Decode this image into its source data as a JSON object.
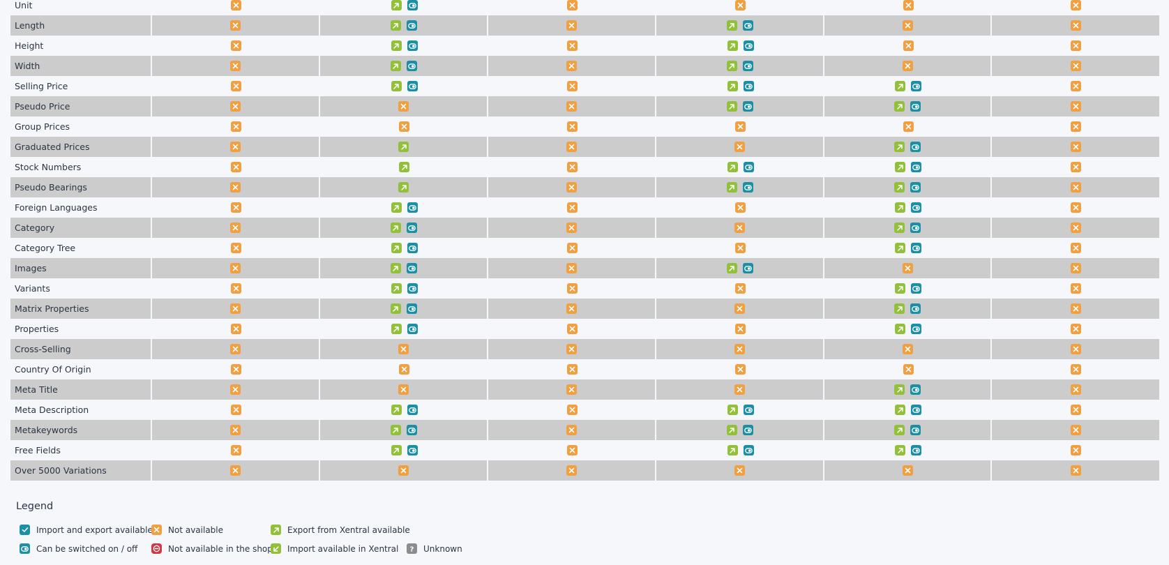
{
  "columns_count": 6,
  "rows": [
    {
      "label": "Unit",
      "cells": [
        [
          "na"
        ],
        [
          "export",
          "toggle"
        ],
        [
          "na"
        ],
        [
          "na"
        ],
        [
          "na"
        ],
        [
          "na"
        ]
      ]
    },
    {
      "label": "Length",
      "cells": [
        [
          "na"
        ],
        [
          "export",
          "toggle"
        ],
        [
          "na"
        ],
        [
          "export",
          "toggle"
        ],
        [
          "na"
        ],
        [
          "na"
        ]
      ]
    },
    {
      "label": "Height",
      "cells": [
        [
          "na"
        ],
        [
          "export",
          "toggle"
        ],
        [
          "na"
        ],
        [
          "export",
          "toggle"
        ],
        [
          "na"
        ],
        [
          "na"
        ]
      ]
    },
    {
      "label": "Width",
      "cells": [
        [
          "na"
        ],
        [
          "export",
          "toggle"
        ],
        [
          "na"
        ],
        [
          "export",
          "toggle"
        ],
        [
          "na"
        ],
        [
          "na"
        ]
      ]
    },
    {
      "label": "Selling Price",
      "cells": [
        [
          "na"
        ],
        [
          "export",
          "toggle"
        ],
        [
          "na"
        ],
        [
          "export",
          "toggle"
        ],
        [
          "export",
          "toggle"
        ],
        [
          "na"
        ]
      ]
    },
    {
      "label": "Pseudo Price",
      "cells": [
        [
          "na"
        ],
        [
          "na"
        ],
        [
          "na"
        ],
        [
          "export",
          "toggle"
        ],
        [
          "export",
          "toggle"
        ],
        [
          "na"
        ]
      ]
    },
    {
      "label": "Group Prices",
      "cells": [
        [
          "na"
        ],
        [
          "na"
        ],
        [
          "na"
        ],
        [
          "na"
        ],
        [
          "na"
        ],
        [
          "na"
        ]
      ]
    },
    {
      "label": "Graduated Prices",
      "cells": [
        [
          "na"
        ],
        [
          "export"
        ],
        [
          "na"
        ],
        [
          "na"
        ],
        [
          "export",
          "toggle"
        ],
        [
          "na"
        ]
      ]
    },
    {
      "label": "Stock Numbers",
      "cells": [
        [
          "na"
        ],
        [
          "export"
        ],
        [
          "na"
        ],
        [
          "export",
          "toggle"
        ],
        [
          "export",
          "toggle"
        ],
        [
          "na"
        ]
      ]
    },
    {
      "label": "Pseudo Bearings",
      "cells": [
        [
          "na"
        ],
        [
          "export"
        ],
        [
          "na"
        ],
        [
          "export",
          "toggle"
        ],
        [
          "export",
          "toggle"
        ],
        [
          "na"
        ]
      ]
    },
    {
      "label": "Foreign Languages",
      "cells": [
        [
          "na"
        ],
        [
          "export",
          "toggle"
        ],
        [
          "na"
        ],
        [
          "na"
        ],
        [
          "export",
          "toggle"
        ],
        [
          "na"
        ]
      ]
    },
    {
      "label": "Category",
      "cells": [
        [
          "na"
        ],
        [
          "export",
          "toggle"
        ],
        [
          "na"
        ],
        [
          "na"
        ],
        [
          "export",
          "toggle"
        ],
        [
          "na"
        ]
      ]
    },
    {
      "label": "Category Tree",
      "cells": [
        [
          "na"
        ],
        [
          "export",
          "toggle"
        ],
        [
          "na"
        ],
        [
          "na"
        ],
        [
          "export",
          "toggle"
        ],
        [
          "na"
        ]
      ]
    },
    {
      "label": "Images",
      "cells": [
        [
          "na"
        ],
        [
          "export",
          "toggle"
        ],
        [
          "na"
        ],
        [
          "export",
          "toggle"
        ],
        [
          "na"
        ],
        [
          "na"
        ]
      ]
    },
    {
      "label": "Variants",
      "cells": [
        [
          "na"
        ],
        [
          "export",
          "toggle"
        ],
        [
          "na"
        ],
        [
          "na"
        ],
        [
          "export",
          "toggle"
        ],
        [
          "na"
        ]
      ]
    },
    {
      "label": "Matrix Properties",
      "cells": [
        [
          "na"
        ],
        [
          "export",
          "toggle"
        ],
        [
          "na"
        ],
        [
          "na"
        ],
        [
          "export",
          "toggle"
        ],
        [
          "na"
        ]
      ]
    },
    {
      "label": "Properties",
      "cells": [
        [
          "na"
        ],
        [
          "export",
          "toggle"
        ],
        [
          "na"
        ],
        [
          "na"
        ],
        [
          "export",
          "toggle"
        ],
        [
          "na"
        ]
      ]
    },
    {
      "label": "Cross-Selling",
      "cells": [
        [
          "na"
        ],
        [
          "na"
        ],
        [
          "na"
        ],
        [
          "na"
        ],
        [
          "na"
        ],
        [
          "na"
        ]
      ]
    },
    {
      "label": "Country Of Origin",
      "cells": [
        [
          "na"
        ],
        [
          "na"
        ],
        [
          "na"
        ],
        [
          "na"
        ],
        [
          "na"
        ],
        [
          "na"
        ]
      ]
    },
    {
      "label": "Meta Title",
      "cells": [
        [
          "na"
        ],
        [
          "na"
        ],
        [
          "na"
        ],
        [
          "na"
        ],
        [
          "export",
          "toggle"
        ],
        [
          "na"
        ]
      ]
    },
    {
      "label": "Meta Description",
      "cells": [
        [
          "na"
        ],
        [
          "export",
          "toggle"
        ],
        [
          "na"
        ],
        [
          "export",
          "toggle"
        ],
        [
          "export",
          "toggle"
        ],
        [
          "na"
        ]
      ]
    },
    {
      "label": "Metakeywords",
      "cells": [
        [
          "na"
        ],
        [
          "export",
          "toggle"
        ],
        [
          "na"
        ],
        [
          "export",
          "toggle"
        ],
        [
          "export",
          "toggle"
        ],
        [
          "na"
        ]
      ]
    },
    {
      "label": "Free Fields",
      "cells": [
        [
          "na"
        ],
        [
          "export",
          "toggle"
        ],
        [
          "na"
        ],
        [
          "export",
          "toggle"
        ],
        [
          "export",
          "toggle"
        ],
        [
          "na"
        ]
      ]
    },
    {
      "label": "Over 5000 Variations",
      "cells": [
        [
          "na"
        ],
        [
          "na"
        ],
        [
          "na"
        ],
        [
          "na"
        ],
        [
          "na"
        ],
        [
          "na"
        ]
      ]
    }
  ],
  "legend": {
    "title": "Legend",
    "items": [
      {
        "icon": "check",
        "label": "Import and export available"
      },
      {
        "icon": "na",
        "label": "Not available"
      },
      {
        "icon": "export",
        "label": "Export from Xentral available"
      },
      {
        "icon": "toggle",
        "label": "Can be switched on / off"
      },
      {
        "icon": "shop",
        "label": "Not available in the shop"
      },
      {
        "icon": "import",
        "label": "Import available in Xentral"
      },
      {
        "icon": "unknown",
        "label": "Unknown"
      }
    ]
  },
  "icon_names": {
    "na": "not-available-icon",
    "export": "export-arrow-icon",
    "import": "import-arrow-icon",
    "toggle": "toggle-switch-icon",
    "check": "checkmark-icon",
    "shop": "no-entry-icon",
    "unknown": "question-mark-icon"
  },
  "colors": {
    "not_available": "#f0a040",
    "export_import": "#92c03a",
    "toggle_check": "#1b8fa5",
    "shop_unavailable": "#d9333f",
    "unknown": "#8c8c8c",
    "row_stripe": "#cccccc",
    "background": "#f6f7fb"
  }
}
